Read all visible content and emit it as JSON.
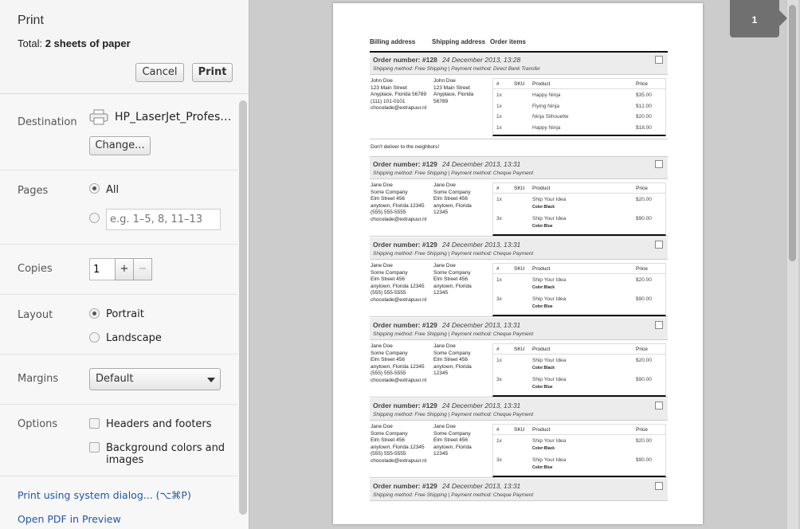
{
  "dialog": {
    "title": "Print",
    "total_prefix": "Total:",
    "total_value": "2 sheets of paper",
    "cancel": "Cancel",
    "print": "Print"
  },
  "destination": {
    "label": "Destination",
    "printer": "HP_LaserJet_Profes…",
    "change": "Change...",
    "icon": "printer-icon"
  },
  "pages": {
    "label": "Pages",
    "all": "All",
    "selected": "all",
    "range_placeholder": "e.g. 1–5, 8, 11–13"
  },
  "copies": {
    "label": "Copies",
    "value": "1",
    "plus": "+",
    "minus": "−"
  },
  "layout": {
    "label": "Layout",
    "portrait": "Portrait",
    "landscape": "Landscape",
    "selected": "portrait"
  },
  "margins": {
    "label": "Margins",
    "value": "Default"
  },
  "options": {
    "label": "Options",
    "headers": "Headers and footers",
    "background": "Background colors and images"
  },
  "links": {
    "system_dialog": "Print using system dialog... (⌥⌘P)",
    "open_pdf": "Open PDF in Preview"
  },
  "preview": {
    "page_number": "1",
    "columns": [
      "Billing address",
      "Shipping address",
      "Order items"
    ],
    "table_headers": [
      "#",
      "SKU",
      "Product",
      "Price"
    ],
    "orders": [
      {
        "number": "Order number: #128",
        "date": "24 December 2013, 13:28",
        "shipping": "Shipping method: Free Shipping",
        "payment": "Payment method: Direct Bank Transfer",
        "billing": [
          "John Doe",
          "123 Main Street",
          "Anyplace, Florida 56789",
          "(111) 101-0101",
          "chocolade@extrapuur.nl"
        ],
        "shipping_addr": [
          "John Doe",
          "123 Main Street",
          "Anyplace, Florida",
          "56789"
        ],
        "items": [
          {
            "qty": "1x",
            "product": "Happy Ninja",
            "price": "$35.00"
          },
          {
            "qty": "1x",
            "product": "Flying Ninja",
            "price": "$12.00"
          },
          {
            "qty": "1x",
            "product": "Ninja Silhouette",
            "price": "$20.00"
          },
          {
            "qty": "1x",
            "product": "Happy Ninja",
            "price": "$18.00"
          }
        ],
        "note": "Don't deliver to the neighbors!"
      },
      {
        "number": "Order number: #129",
        "date": "24 December 2013, 13:31",
        "shipping": "Shipping method: Free Shipping",
        "payment": "Payment method: Cheque Payment",
        "billing": [
          "Jane Doe",
          "Some Company",
          "Elm Street 456",
          "anytown, Florida 12345",
          "(555) 555-5555",
          "chocolade@extrapuur.nl"
        ],
        "shipping_addr": [
          "Jane Doe",
          "Some Company",
          "Elm Street 456",
          "anytown, Florida",
          "12345"
        ],
        "items": [
          {
            "qty": "1x",
            "product": "Ship Your Idea",
            "option": "Color:Black",
            "price": "$20.00"
          },
          {
            "qty": "3x",
            "product": "Ship Your Idea",
            "option": "Color:Blue",
            "price": "$90.00"
          }
        ]
      },
      {
        "number": "Order number: #129",
        "date": "24 December 2013, 13:31",
        "shipping": "Shipping method: Free Shipping",
        "payment": "Payment method: Cheque Payment",
        "billing": [
          "Jane Doe",
          "Some Company",
          "Elm Street 456",
          "anytown, Florida 12345",
          "(555) 555-5555",
          "chocolade@extrapuur.nl"
        ],
        "shipping_addr": [
          "Jane Doe",
          "Some Company",
          "Elm Street 456",
          "anytown, Florida",
          "12345"
        ],
        "items": [
          {
            "qty": "1x",
            "product": "Ship Your Idea",
            "option": "Color:Black",
            "price": "$20.00"
          },
          {
            "qty": "3x",
            "product": "Ship Your Idea",
            "option": "Color:Blue",
            "price": "$90.00"
          }
        ]
      },
      {
        "number": "Order number: #129",
        "date": "24 December 2013, 13:31",
        "shipping": "Shipping method: Free Shipping",
        "payment": "Payment method: Cheque Payment",
        "billing": [
          "Jane Doe",
          "Some Company",
          "Elm Street 456",
          "anytown, Florida 12345",
          "(555) 555-5555",
          "chocolade@extrapuur.nl"
        ],
        "shipping_addr": [
          "Jane Doe",
          "Some Company",
          "Elm Street 456",
          "anytown, Florida",
          "12345"
        ],
        "items": [
          {
            "qty": "1x",
            "product": "Ship Your Idea",
            "option": "Color:Black",
            "price": "$20.00"
          },
          {
            "qty": "3x",
            "product": "Ship Your Idea",
            "option": "Color:Blue",
            "price": "$90.00"
          }
        ]
      },
      {
        "number": "Order number: #129",
        "date": "24 December 2013, 13:31",
        "shipping": "Shipping method: Free Shipping",
        "payment": "Payment method: Cheque Payment",
        "billing": [
          "Jane Doe",
          "Some Company",
          "Elm Street 456",
          "anytown, Florida 12345",
          "(555) 555-5555",
          "chocolade@extrapuur.nl"
        ],
        "shipping_addr": [
          "Jane Doe",
          "Some Company",
          "Elm Street 456",
          "anytown, Florida",
          "12345"
        ],
        "items": [
          {
            "qty": "1x",
            "product": "Ship Your Idea",
            "option": "Color:Black",
            "price": "$20.00"
          },
          {
            "qty": "3x",
            "product": "Ship Your Idea",
            "option": "Color:Blue",
            "price": "$90.00"
          }
        ]
      },
      {
        "number": "Order number: #129",
        "date": "24 December 2013, 13:31",
        "shipping": "Shipping method: Free Shipping",
        "payment": "Payment method: Cheque Payment"
      }
    ]
  }
}
